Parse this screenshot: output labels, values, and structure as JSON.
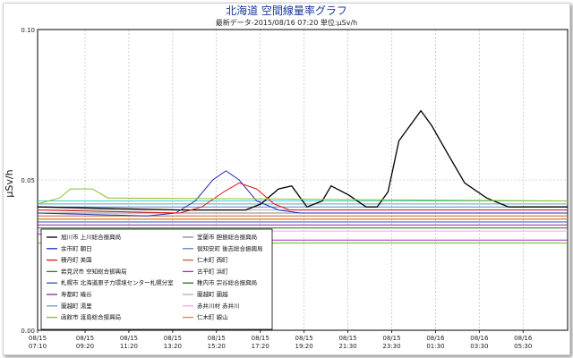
{
  "chart_data": {
    "type": "line",
    "title": "北海道 空間線量率グラフ",
    "subtitle": "最新データ-2015/08/16 07:20",
    "unit_note": "単位:μSv/h",
    "ylabel": "μSv/h",
    "ylim": [
      0,
      0.1
    ],
    "yticks": [
      "0.00",
      "0.05",
      "0.10"
    ],
    "ytick_values": [
      0,
      0.05,
      0.1
    ],
    "grid": true,
    "legend_position": "bottom-left, inside plot",
    "xlim_hours": [
      0,
      24.2
    ],
    "xtick_positions_hours": [
      0,
      2.1667,
      4.1667,
      6.1667,
      8.1667,
      10.1667,
      12.1667,
      14.1667,
      16.1667,
      18.1667,
      20.1667,
      22.1667
    ],
    "xticks": [
      [
        "08/15",
        "07:10"
      ],
      [
        "08/15",
        "09:20"
      ],
      [
        "08/15",
        "11:20"
      ],
      [
        "08/15",
        "13:20"
      ],
      [
        "08/15",
        "15:20"
      ],
      [
        "08/15",
        "17:20"
      ],
      [
        "08/15",
        "19:20"
      ],
      [
        "08/15",
        "21:30"
      ],
      [
        "08/15",
        "23:30"
      ],
      [
        "08/16",
        "01:30"
      ],
      [
        "08/16",
        "03:30"
      ],
      [
        "08/16",
        "05:30"
      ]
    ],
    "series": [
      {
        "name": "旭川市 上川総合振興局",
        "color": "#000000",
        "x": [
          0,
          6.5,
          9.5,
          10.2,
          11,
          11.6,
          12.3,
          13,
          13.4,
          14.2,
          15,
          15.5,
          16,
          16.5,
          17,
          17.5,
          18,
          18.7,
          19.5,
          20.5,
          21.5,
          22.5,
          24.2
        ],
        "y": [
          0.041,
          0.04,
          0.04,
          0.042,
          0.047,
          0.048,
          0.041,
          0.043,
          0.048,
          0.045,
          0.041,
          0.041,
          0.046,
          0.063,
          0.068,
          0.073,
          0.068,
          0.059,
          0.049,
          0.044,
          0.041,
          0.041,
          0.041
        ]
      },
      {
        "name": "余市町 朝日",
        "color": "#1f2fb5",
        "x": [
          0,
          5,
          6.3,
          7.2,
          8,
          8.6,
          9.2,
          10,
          11,
          12,
          24.2
        ],
        "y": [
          0.039,
          0.038,
          0.039,
          0.043,
          0.05,
          0.053,
          0.05,
          0.043,
          0.04,
          0.039,
          0.039
        ]
      },
      {
        "name": "積丹町 美国",
        "color": "#e01515",
        "x": [
          0,
          6.5,
          7.5,
          8.5,
          9.2,
          10,
          10.8,
          11.5,
          24.2
        ],
        "y": [
          0.04,
          0.039,
          0.041,
          0.046,
          0.049,
          0.047,
          0.042,
          0.04,
          0.04
        ]
      },
      {
        "name": "岩見沢市 空知総合振興局",
        "color": "#1c8a1c",
        "x": [
          0,
          24.2
        ],
        "y": [
          0.037,
          0.037
        ]
      },
      {
        "name": "札幌市 北海道原子力環境センター札幌分室",
        "color": "#2a4fd0",
        "x": [
          0,
          24.2
        ],
        "y": [
          0.036,
          0.036
        ]
      },
      {
        "name": "寿都町 磯谷",
        "color": "#8a2a8a",
        "x": [
          0,
          24.2
        ],
        "y": [
          0.035,
          0.035
        ]
      },
      {
        "name": "蘭越町 湯里",
        "color": "#6aa0b0",
        "x": [
          0,
          24.2
        ],
        "y": [
          0.042,
          0.042
        ]
      },
      {
        "name": "函館市 渡島総合振興局",
        "color": "#88c020",
        "x": [
          0,
          1,
          1.5,
          2.5,
          3.2,
          24.2
        ],
        "y": [
          0.042,
          0.044,
          0.047,
          0.047,
          0.044,
          0.043
        ]
      },
      {
        "name": "室蘭市 胆振総合振興局",
        "color": "#8a8a8a",
        "x": [
          0,
          24.2
        ],
        "y": [
          0.039,
          0.039
        ]
      },
      {
        "name": "倶知安町 後志総合振興局",
        "color": "#6080c0",
        "x": [
          0,
          24.2
        ],
        "y": [
          0.041,
          0.041
        ]
      },
      {
        "name": "仁木町 西町",
        "color": "#c06030",
        "x": [
          0,
          24.2
        ],
        "y": [
          0.038,
          0.038
        ]
      },
      {
        "name": "古平町 浜町",
        "color": "#a030c0",
        "x": [
          0,
          8.5,
          10,
          24.2
        ],
        "y": [
          0.032,
          0.031,
          0.03,
          0.03
        ]
      },
      {
        "name": "稚内市 宗谷総合振興局",
        "color": "#2a6a2a",
        "x": [
          0,
          24.2
        ],
        "y": [
          0.034,
          0.034
        ]
      },
      {
        "name": "蘭越町 蘭越",
        "color": "#b0b0b0",
        "x": [
          0,
          24.2
        ],
        "y": [
          0.04,
          0.04
        ]
      },
      {
        "name": "赤井川村 赤井川",
        "color": "#f0a0f0",
        "x": [
          0,
          24.2
        ],
        "y": [
          0.033,
          0.033
        ]
      },
      {
        "name": "仁木町 銀山",
        "color": "#f08040",
        "x": [
          0,
          24.2
        ],
        "y": [
          0.037,
          0.037
        ]
      },
      {
        "name": "",
        "color": "#40d0d0",
        "x": [
          0,
          24.2
        ],
        "y": [
          0.043,
          0.043
        ]
      },
      {
        "name": "",
        "color": "#60c000",
        "x": [
          0,
          24.2
        ],
        "y": [
          0.029,
          0.029
        ]
      }
    ]
  }
}
